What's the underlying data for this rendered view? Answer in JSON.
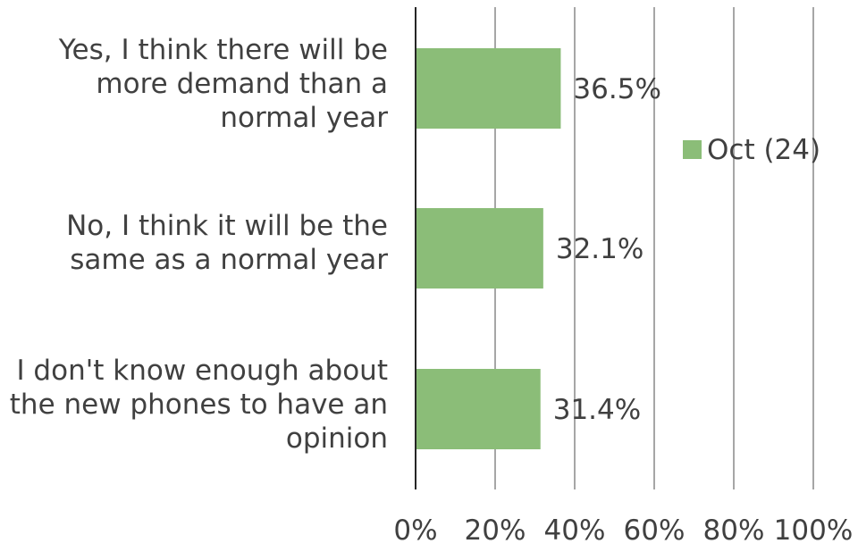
{
  "chart_data": {
    "type": "bar",
    "orientation": "horizontal",
    "categories": [
      [
        "Yes, I think there will be",
        "more demand than a",
        "normal year"
      ],
      [
        "No, I think it will be the",
        "same as a normal year"
      ],
      [
        "I don't know enough about",
        "the new phones to have an",
        "opinion"
      ]
    ],
    "series": [
      {
        "name": "Oct (24)",
        "values": [
          36.5,
          32.1,
          31.4
        ],
        "color": "#8bbd78"
      }
    ],
    "data_labels": [
      "36.5%",
      "32.1%",
      "31.4%"
    ],
    "x_ticks": [
      "0%",
      "20%",
      "40%",
      "60%",
      "80%",
      "100%"
    ],
    "xlim": [
      0,
      100
    ],
    "grid": true,
    "legend": {
      "position": "right",
      "entries": [
        "Oct (24)"
      ]
    },
    "title": "",
    "xlabel": "",
    "ylabel": ""
  }
}
